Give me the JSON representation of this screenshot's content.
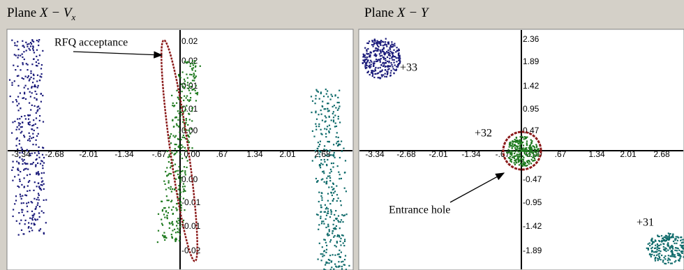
{
  "panels": [
    {
      "title": "Plane",
      "variables": "X − V",
      "subscript": "x",
      "x_tick_labels": [
        "-3.34",
        "-2.68",
        "-2.01",
        "-1.34",
        "-.67",
        "0.00",
        ".67",
        "1.34",
        "2.01",
        "2.68"
      ],
      "y_tick_labels": [
        "0.02",
        "0.02",
        "0.01",
        "0.01",
        "0.00",
        "0.00",
        "-0.01",
        "-0.01",
        "-0.02"
      ],
      "annotations": [
        "RFQ acceptance"
      ]
    },
    {
      "title": "Plane",
      "variables": "X − Y",
      "x_tick_labels": [
        "-3.34",
        "-2.68",
        "-2.01",
        "-1.34",
        "-.67",
        "0.00",
        ".67",
        "1.34",
        "2.01",
        "2.68"
      ],
      "y_tick_labels": [
        "2.36",
        "1.89",
        "1.42",
        "0.95",
        "0.47",
        "-0.47",
        "-0.95",
        "-1.42",
        "-1.89"
      ],
      "annotations": [
        "+33",
        "+32",
        "+31",
        "Entrance hole"
      ]
    }
  ]
}
